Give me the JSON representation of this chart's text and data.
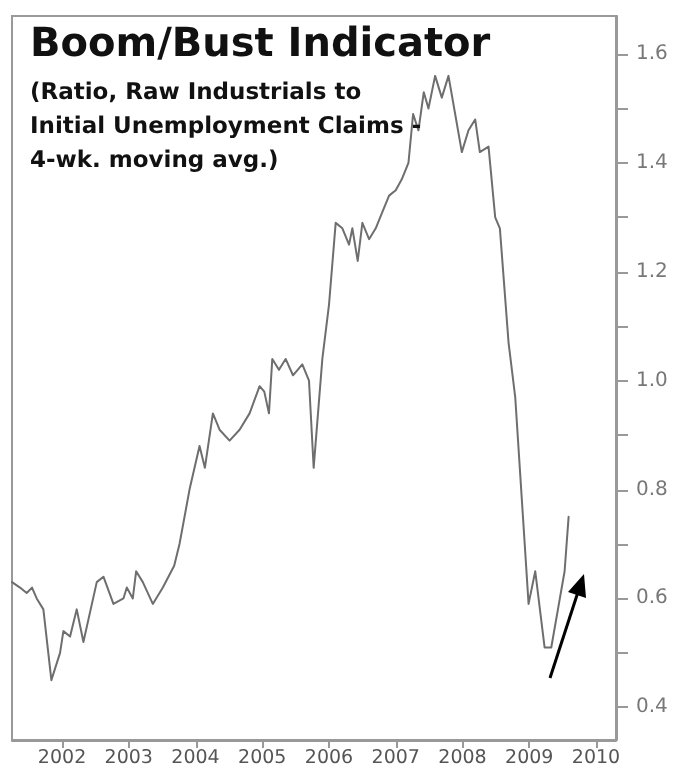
{
  "chart_data": {
    "type": "line",
    "title": "Boom/Bust Indicator",
    "subtitle": "(Ratio, Raw Industrials to\nInitial Unemployment Claims -\n4-wk. moving avg.)",
    "series": [
      {
        "color": "#6e6e6e",
        "x": [
          2001.25,
          2001.37,
          2001.47,
          2001.55,
          2001.62,
          2001.72,
          2001.84,
          2001.97,
          2002.02,
          2002.12,
          2002.22,
          2002.32,
          2002.52,
          2002.62,
          2002.77,
          2002.92,
          2002.97,
          2003.06,
          2003.11,
          2003.21,
          2003.36,
          2003.51,
          2003.68,
          2003.76,
          2003.91,
          2004.06,
          2004.14,
          2004.26,
          2004.36,
          2004.51,
          2004.66,
          2004.81,
          2004.96,
          2005.03,
          2005.1,
          2005.15,
          2005.25,
          2005.35,
          2005.46,
          2005.6,
          2005.7,
          2005.77,
          2005.9,
          2006.0,
          2006.1,
          2006.2,
          2006.3,
          2006.35,
          2006.43,
          2006.5,
          2006.6,
          2006.7,
          2006.8,
          2006.9,
          2007.0,
          2007.09,
          2007.19,
          2007.26,
          2007.34,
          2007.42,
          2007.49,
          2007.59,
          2007.69,
          2007.79,
          2007.89,
          2007.99,
          2008.09,
          2008.19,
          2008.26,
          2008.39,
          2008.49,
          2008.56,
          2008.69,
          2008.79,
          2008.99,
          2009.09,
          2009.23,
          2009.33,
          2009.43,
          2009.53,
          2009.59
        ],
        "values": [
          0.63,
          0.62,
          0.61,
          0.62,
          0.6,
          0.58,
          0.45,
          0.5,
          0.54,
          0.53,
          0.58,
          0.52,
          0.63,
          0.64,
          0.59,
          0.6,
          0.62,
          0.6,
          0.65,
          0.63,
          0.59,
          0.62,
          0.66,
          0.7,
          0.8,
          0.88,
          0.84,
          0.94,
          0.91,
          0.89,
          0.91,
          0.94,
          0.99,
          0.98,
          0.94,
          1.04,
          1.02,
          1.04,
          1.01,
          1.03,
          1.0,
          0.84,
          1.04,
          1.14,
          1.29,
          1.28,
          1.25,
          1.28,
          1.22,
          1.29,
          1.26,
          1.28,
          1.31,
          1.34,
          1.35,
          1.37,
          1.4,
          1.49,
          1.46,
          1.53,
          1.5,
          1.56,
          1.52,
          1.56,
          1.49,
          1.42,
          1.46,
          1.48,
          1.42,
          1.43,
          1.3,
          1.28,
          1.07,
          0.97,
          0.59,
          0.65,
          0.51,
          0.51,
          0.58,
          0.65,
          0.75
        ]
      }
    ],
    "xlim": [
      2001.25,
      2010.3
    ],
    "xticks": [
      2002,
      2003,
      2004,
      2005,
      2006,
      2007,
      2008,
      2009,
      2010
    ],
    "ylim": [
      0.34,
      1.67
    ],
    "yticks": [
      {
        "value": 0.4,
        "label": "0.4"
      },
      {
        "value": 0.5,
        "label": null
      },
      {
        "value": 0.6,
        "label": "0.6"
      },
      {
        "value": 0.7,
        "label": null
      },
      {
        "value": 0.8,
        "label": "0.8"
      },
      {
        "value": 0.9,
        "label": null
      },
      {
        "value": 1.0,
        "label": "1.0"
      },
      {
        "value": 1.1,
        "label": null
      },
      {
        "value": 1.2,
        "label": "1.2"
      },
      {
        "value": 1.3,
        "label": null
      },
      {
        "value": 1.4,
        "label": "1.4"
      },
      {
        "value": 1.5,
        "label": null
      },
      {
        "value": 1.6,
        "label": "1.6"
      }
    ],
    "grid": false,
    "marker": "none",
    "line_style": "solid"
  }
}
